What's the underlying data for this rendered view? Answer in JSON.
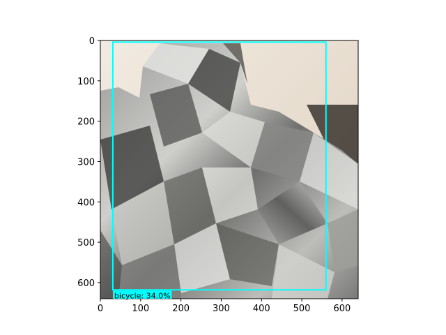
{
  "plot": {
    "x_ticks": [
      "0",
      "100",
      "200",
      "300",
      "400",
      "500",
      "600"
    ],
    "y_ticks": [
      "0",
      "100",
      "200",
      "300",
      "400",
      "500",
      "600"
    ],
    "x_range": [
      0,
      640
    ],
    "y_range": [
      640,
      0
    ],
    "y_axis_inverted": true
  },
  "image_content": "crumpled aluminum foil photograph",
  "detection": {
    "label_text": "bicycle: 34.0%",
    "class": "bicycle",
    "confidence_pct": 34.0,
    "box": {
      "x1": 31,
      "y1": 4,
      "x2": 560,
      "y2": 618
    },
    "box_color": "#00ffff",
    "label_background": "#00ffff",
    "label_text_color": "#000000"
  },
  "colors": {
    "background": "#ffffff",
    "axis": "#000000",
    "wall": "#e6dbcd",
    "foil_mid": "#8e8e8c",
    "foil_dark": "#2c2c2c",
    "foil_light": "#e7e7e4"
  }
}
